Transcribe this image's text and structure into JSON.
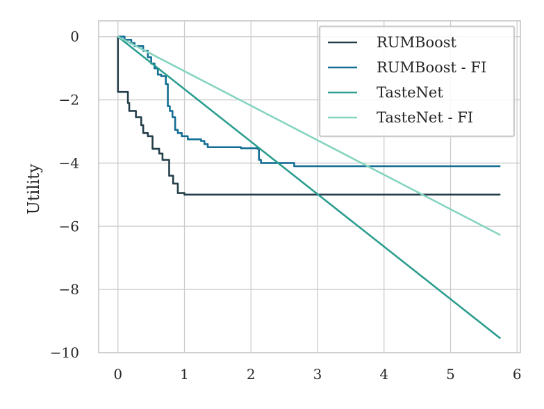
{
  "chart_data": {
    "type": "line",
    "title": "",
    "xlabel": "",
    "ylabel": "Utility",
    "xlim": [
      -0.29,
      6.05
    ],
    "ylim": [
      -10,
      0.5
    ],
    "xticks": [
      0,
      1,
      2,
      3,
      4,
      5,
      6
    ],
    "yticks": [
      0,
      -2,
      -4,
      -6,
      -8,
      -10
    ],
    "xtick_labels": [
      "0",
      "1",
      "2",
      "3",
      "4",
      "5",
      "6"
    ],
    "ytick_labels": [
      "0",
      "−2",
      "−4",
      "−6",
      "−8",
      "−10"
    ],
    "grid": true,
    "legend_position": "top-right",
    "series": [
      {
        "name": "RUMBoost",
        "color": "#243f4a",
        "step": true,
        "x": [
          0,
          0.0,
          0.15,
          0.17,
          0.2,
          0.27,
          0.35,
          0.38,
          0.45,
          0.52,
          0.62,
          0.67,
          0.77,
          0.83,
          0.9,
          1.0,
          5.75
        ],
        "y": [
          0,
          -1.75,
          -2.1,
          -2.35,
          -2.35,
          -2.55,
          -2.8,
          -3.05,
          -3.15,
          -3.55,
          -3.7,
          -3.9,
          -4.4,
          -4.65,
          -4.95,
          -5.0,
          -5.0
        ]
      },
      {
        "name": "RUMBoost - FI",
        "color": "#146e94",
        "step": true,
        "x": [
          0,
          0.1,
          0.2,
          0.25,
          0.38,
          0.45,
          0.5,
          0.55,
          0.6,
          0.65,
          0.72,
          0.75,
          0.78,
          0.82,
          0.86,
          0.9,
          0.96,
          1.05,
          1.25,
          1.3,
          1.35,
          1.85,
          2.1,
          2.12,
          2.15,
          2.65,
          5.75
        ],
        "y": [
          0,
          -0.1,
          -0.2,
          -0.3,
          -0.45,
          -0.65,
          -0.85,
          -1.0,
          -1.2,
          -1.25,
          -1.5,
          -2.2,
          -2.35,
          -2.55,
          -2.95,
          -3.05,
          -3.15,
          -3.25,
          -3.3,
          -3.4,
          -3.5,
          -3.53,
          -3.55,
          -3.9,
          -4.0,
          -4.1,
          -4.1
        ]
      },
      {
        "name": "TasteNet",
        "color": "#2a9d8f",
        "step": false,
        "x": [
          0,
          5.75
        ],
        "y": [
          0,
          -9.55
        ]
      },
      {
        "name": "TasteNet - FI",
        "color": "#86d4c0",
        "step": false,
        "x": [
          0,
          5.75
        ],
        "y": [
          0,
          -6.28
        ]
      }
    ]
  }
}
